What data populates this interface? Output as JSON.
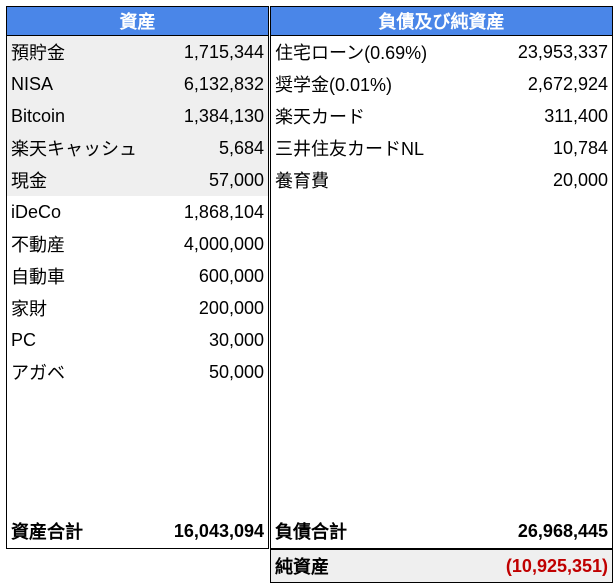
{
  "assets": {
    "header": "資産",
    "items": [
      {
        "label": "預貯金",
        "value": "1,715,344",
        "shaded": true
      },
      {
        "label": "NISA",
        "value": "6,132,832",
        "shaded": true
      },
      {
        "label": "Bitcoin",
        "value": "1,384,130",
        "shaded": true
      },
      {
        "label": "楽天キャッシュ",
        "value": "5,684",
        "shaded": true
      },
      {
        "label": "現金",
        "value": "57,000",
        "shaded": true
      },
      {
        "label": "iDeCo",
        "value": "1,868,104",
        "shaded": false
      },
      {
        "label": "不動産",
        "value": "4,000,000",
        "shaded": false
      },
      {
        "label": "自動車",
        "value": "600,000",
        "shaded": false
      },
      {
        "label": "家財",
        "value": "200,000",
        "shaded": false
      },
      {
        "label": "PC",
        "value": "30,000",
        "shaded": false
      },
      {
        "label": "アガベ",
        "value": "50,000",
        "shaded": false
      }
    ],
    "total_label": "資産合計",
    "total_value": "16,043,094"
  },
  "liabilities": {
    "header": "負債及び純資産",
    "items": [
      {
        "label": "住宅ローン(0.69%)",
        "value": "23,953,337"
      },
      {
        "label": "奨学金(0.01%)",
        "value": "2,672,924"
      },
      {
        "label": "楽天カード",
        "value": "311,400"
      },
      {
        "label": "三井住友カードNL",
        "value": "10,784"
      },
      {
        "label": "養育費",
        "value": "20,000"
      }
    ],
    "total_label": "負債合計",
    "total_value": "26,968,445"
  },
  "net_assets": {
    "label": "純資産",
    "value": "(10,925,351)"
  },
  "colors": {
    "header_bg": "#4a86e8",
    "shaded_bg": "#efefef",
    "negative": "#c00000"
  }
}
